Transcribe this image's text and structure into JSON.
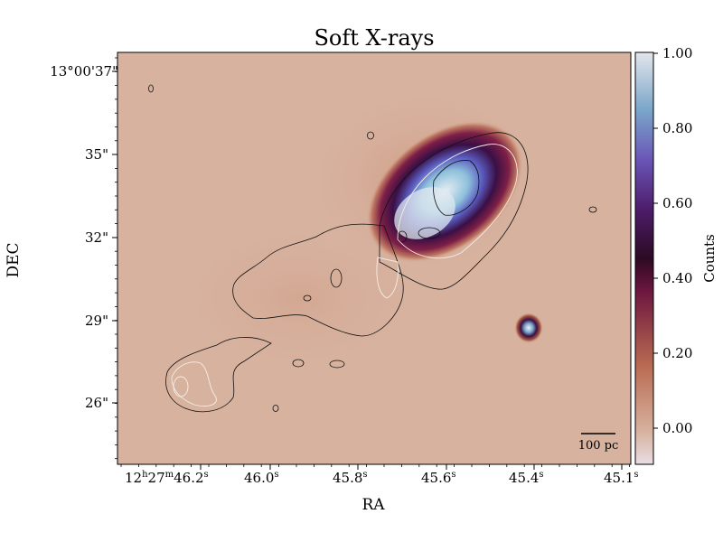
{
  "figure": {
    "title": "Soft X-rays",
    "xlabel": "RA",
    "ylabel": "DEC",
    "colorbar_label": "Counts",
    "scalebar_label": "100 pc"
  },
  "x_ticks": [
    {
      "h": "12",
      "m": "27",
      "s": "46.2",
      "label_prefix": "12",
      "h_sup": "h",
      "mid": "27",
      "m_sup": "m",
      "sec": "46.2",
      "s_sup": "s"
    },
    {
      "sec": "46.0",
      "s_sup": "s"
    },
    {
      "sec": "45.8",
      "s_sup": "s"
    },
    {
      "sec": "45.6",
      "s_sup": "s"
    },
    {
      "sec": "45.4",
      "s_sup": "s"
    },
    {
      "sec": "45.1",
      "s_sup": "s"
    }
  ],
  "y_ticks": [
    "13°00'37\"",
    "35\"",
    "32\"",
    "29\"",
    "26\""
  ],
  "colorbar_ticks": [
    "1.00",
    "0.80",
    "0.60",
    "0.40",
    "0.20",
    "0.00"
  ],
  "colors": {
    "background": "#d7b29f",
    "colormap": [
      "#e9dde4",
      "#d7b29f",
      "#b96a52",
      "#6d173f",
      "#2c0a22",
      "#4d1d6b",
      "#6a56b7",
      "#7aa6c9",
      "#e3e6ec"
    ]
  }
}
